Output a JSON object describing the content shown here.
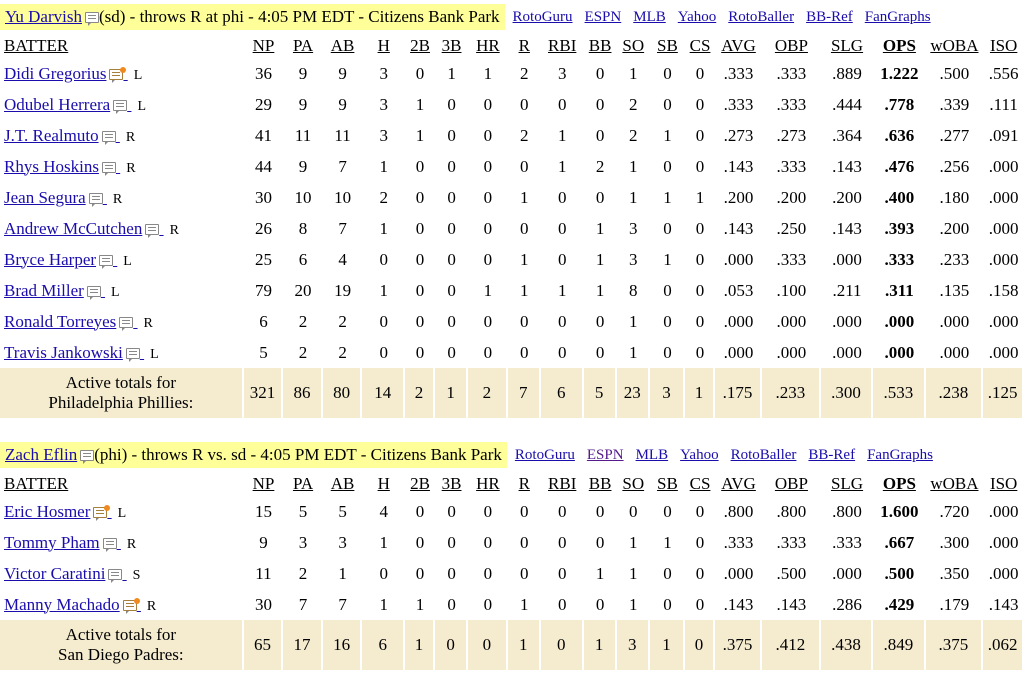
{
  "games": [
    {
      "pitcher": {
        "name": "Yu Darvish",
        "info": "(sd) - throws R at phi - 4:05 PM EDT - Citizens Bank Park"
      },
      "links": [
        "RotoGuru",
        "ESPN",
        "MLB",
        "Yahoo",
        "RotoBaller",
        "BB-Ref",
        "FanGraphs"
      ],
      "headers": [
        "BATTER",
        "NP",
        "PA",
        "AB",
        "H",
        "2B",
        "3B",
        "HR",
        "R",
        "RBI",
        "BB",
        "SO",
        "SB",
        "CS",
        "AVG",
        "OBP",
        "SLG",
        "OPS",
        "wOBA",
        "ISO"
      ],
      "batters": [
        {
          "name": "Didi Gregorius",
          "hand": "L",
          "news": true,
          "stats": [
            "36",
            "9",
            "9",
            "3",
            "0",
            "1",
            "1",
            "2",
            "3",
            "0",
            "1",
            "0",
            "0",
            ".333",
            ".333",
            ".889",
            "1.222",
            ".500",
            ".556"
          ]
        },
        {
          "name": "Odubel Herrera",
          "hand": "L",
          "news": false,
          "stats": [
            "29",
            "9",
            "9",
            "3",
            "1",
            "0",
            "0",
            "0",
            "0",
            "0",
            "2",
            "0",
            "0",
            ".333",
            ".333",
            ".444",
            ".778",
            ".339",
            ".111"
          ]
        },
        {
          "name": "J.T. Realmuto",
          "hand": "R",
          "news": false,
          "stats": [
            "41",
            "11",
            "11",
            "3",
            "1",
            "0",
            "0",
            "2",
            "1",
            "0",
            "2",
            "1",
            "0",
            ".273",
            ".273",
            ".364",
            ".636",
            ".277",
            ".091"
          ]
        },
        {
          "name": "Rhys Hoskins",
          "hand": "R",
          "news": false,
          "stats": [
            "44",
            "9",
            "7",
            "1",
            "0",
            "0",
            "0",
            "0",
            "1",
            "2",
            "1",
            "0",
            "0",
            ".143",
            ".333",
            ".143",
            ".476",
            ".256",
            ".000"
          ]
        },
        {
          "name": "Jean Segura",
          "hand": "R",
          "news": false,
          "stats": [
            "30",
            "10",
            "10",
            "2",
            "0",
            "0",
            "0",
            "1",
            "0",
            "0",
            "1",
            "1",
            "1",
            ".200",
            ".200",
            ".200",
            ".400",
            ".180",
            ".000"
          ]
        },
        {
          "name": "Andrew McCutchen",
          "hand": "R",
          "news": false,
          "stats": [
            "26",
            "8",
            "7",
            "1",
            "0",
            "0",
            "0",
            "0",
            "0",
            "1",
            "3",
            "0",
            "0",
            ".143",
            ".250",
            ".143",
            ".393",
            ".200",
            ".000"
          ]
        },
        {
          "name": "Bryce Harper",
          "hand": "L",
          "news": false,
          "stats": [
            "25",
            "6",
            "4",
            "0",
            "0",
            "0",
            "0",
            "1",
            "0",
            "1",
            "3",
            "1",
            "0",
            ".000",
            ".333",
            ".000",
            ".333",
            ".233",
            ".000"
          ]
        },
        {
          "name": "Brad Miller",
          "hand": "L",
          "news": false,
          "stats": [
            "79",
            "20",
            "19",
            "1",
            "0",
            "0",
            "1",
            "1",
            "1",
            "1",
            "8",
            "0",
            "0",
            ".053",
            ".100",
            ".211",
            ".311",
            ".135",
            ".158"
          ]
        },
        {
          "name": "Ronald Torreyes",
          "hand": "R",
          "news": false,
          "stats": [
            "6",
            "2",
            "2",
            "0",
            "0",
            "0",
            "0",
            "0",
            "0",
            "0",
            "1",
            "0",
            "0",
            ".000",
            ".000",
            ".000",
            ".000",
            ".000",
            ".000"
          ]
        },
        {
          "name": "Travis Jankowski",
          "hand": "L",
          "news": false,
          "stats": [
            "5",
            "2",
            "2",
            "0",
            "0",
            "0",
            "0",
            "0",
            "0",
            "0",
            "1",
            "0",
            "0",
            ".000",
            ".000",
            ".000",
            ".000",
            ".000",
            ".000"
          ]
        }
      ],
      "totals": {
        "label_line1": "Active totals for",
        "label_line2": "Philadelphia Phillies:",
        "stats": [
          "321",
          "86",
          "80",
          "14",
          "2",
          "1",
          "2",
          "7",
          "6",
          "5",
          "23",
          "3",
          "1",
          ".175",
          ".233",
          ".300",
          ".533",
          ".238",
          ".125"
        ]
      }
    },
    {
      "pitcher": {
        "name": "Zach Eflin",
        "info": "(phi) - throws R vs. sd - 4:05 PM EDT - Citizens Bank Park"
      },
      "links": [
        "RotoGuru",
        "ESPN",
        "MLB",
        "Yahoo",
        "RotoBaller",
        "BB-Ref",
        "FanGraphs"
      ],
      "headers": [
        "BATTER",
        "NP",
        "PA",
        "AB",
        "H",
        "2B",
        "3B",
        "HR",
        "R",
        "RBI",
        "BB",
        "SO",
        "SB",
        "CS",
        "AVG",
        "OBP",
        "SLG",
        "OPS",
        "wOBA",
        "ISO"
      ],
      "batters": [
        {
          "name": "Eric Hosmer",
          "hand": "L",
          "news": true,
          "stats": [
            "15",
            "5",
            "5",
            "4",
            "0",
            "0",
            "0",
            "0",
            "0",
            "0",
            "0",
            "0",
            "0",
            ".800",
            ".800",
            ".800",
            "1.600",
            ".720",
            ".000"
          ]
        },
        {
          "name": "Tommy Pham",
          "hand": "R",
          "news": false,
          "stats": [
            "9",
            "3",
            "3",
            "1",
            "0",
            "0",
            "0",
            "0",
            "0",
            "0",
            "1",
            "1",
            "0",
            ".333",
            ".333",
            ".333",
            ".667",
            ".300",
            ".000"
          ]
        },
        {
          "name": "Victor Caratini",
          "hand": "S",
          "news": false,
          "stats": [
            "11",
            "2",
            "1",
            "0",
            "0",
            "0",
            "0",
            "0",
            "0",
            "1",
            "1",
            "0",
            "0",
            ".000",
            ".500",
            ".000",
            ".500",
            ".350",
            ".000"
          ]
        },
        {
          "name": "Manny Machado",
          "hand": "R",
          "news": true,
          "stats": [
            "30",
            "7",
            "7",
            "1",
            "1",
            "0",
            "0",
            "1",
            "0",
            "0",
            "1",
            "0",
            "0",
            ".143",
            ".143",
            ".286",
            ".429",
            ".179",
            ".143"
          ]
        }
      ],
      "totals": {
        "label_line1": "Active totals for",
        "label_line2": "San Diego Padres:",
        "stats": [
          "65",
          "17",
          "16",
          "6",
          "1",
          "0",
          "0",
          "1",
          "0",
          "1",
          "3",
          "1",
          "0",
          ".375",
          ".412",
          ".438",
          ".849",
          ".375",
          ".062"
        ]
      }
    }
  ],
  "colors": {
    "pitcher_highlight": "#ffff99",
    "totals_background": "#f5ecd0",
    "link": "#1a0dab",
    "visited_link": "#551a8b"
  }
}
